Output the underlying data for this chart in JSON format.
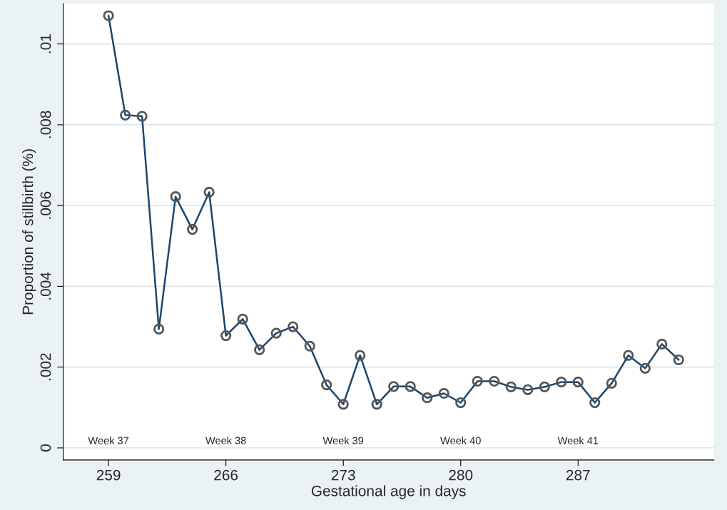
{
  "chart_data": {
    "type": "line",
    "xlabel": "Gestational age in days",
    "ylabel": "Proportion of stillbirth (%)",
    "x": [
      259,
      260,
      261,
      262,
      263,
      264,
      265,
      266,
      267,
      268,
      269,
      270,
      271,
      272,
      273,
      274,
      275,
      276,
      277,
      278,
      279,
      280,
      281,
      282,
      283,
      284,
      285,
      286,
      287,
      288,
      289,
      290,
      291,
      292,
      293
    ],
    "series": [
      {
        "color": "#1a476f",
        "values": [
          0.0107,
          0.00824,
          0.00821,
          0.00294,
          0.00622,
          0.00541,
          0.00633,
          0.00278,
          0.00319,
          0.00243,
          0.00284,
          0.003,
          0.00252,
          0.00156,
          0.00108,
          0.00229,
          0.00108,
          0.00152,
          0.00152,
          0.00124,
          0.00135,
          0.00112,
          0.00165,
          0.00165,
          0.00151,
          0.00144,
          0.00151,
          0.00163,
          0.00163,
          0.00112,
          0.0016,
          0.00229,
          0.00197,
          0.00257,
          0.00218
        ]
      }
    ],
    "xlim": [
      256.3,
      295.1
    ],
    "xticks": [
      259,
      266,
      273,
      280,
      287
    ],
    "ylim": [
      -0.0003,
      0.011
    ],
    "yticks": [
      {
        "value": 0,
        "label": "0"
      },
      {
        "value": 0.002,
        "label": ".002"
      },
      {
        "value": 0.004,
        "label": ".004"
      },
      {
        "value": 0.006,
        "label": ".006"
      },
      {
        "value": 0.008,
        "label": ".008"
      },
      {
        "value": 0.01,
        "label": ".01"
      }
    ],
    "grid": "y",
    "marker": "circle",
    "line_style": "solid",
    "legend": false,
    "annotations": [
      "Week 37",
      "Week 38",
      "Week 39",
      "Week 40",
      "Week 41"
    ]
  }
}
